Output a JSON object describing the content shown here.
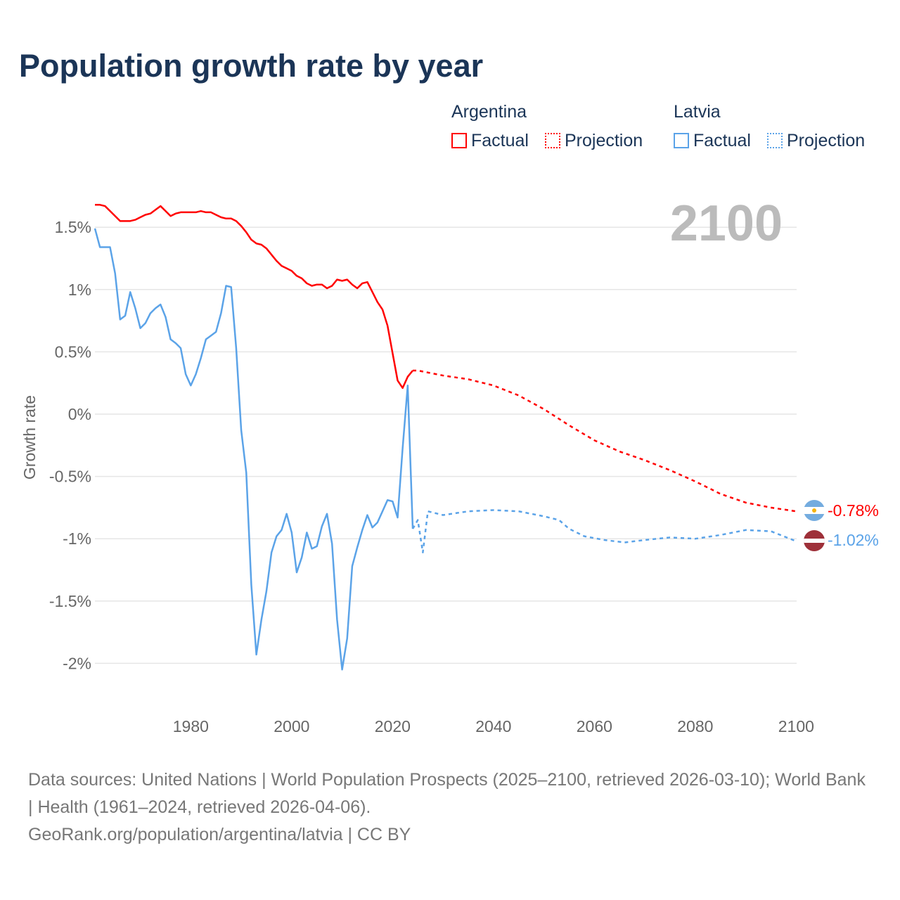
{
  "title": "Population growth rate by year",
  "legend": {
    "groups": [
      {
        "country": "Argentina",
        "color": "#ff0000",
        "factual": "Factual",
        "projection": "Projection"
      },
      {
        "country": "Latvia",
        "color": "#5ba3e8",
        "factual": "Factual",
        "projection": "Projection"
      }
    ]
  },
  "year_label": "2100",
  "end_labels": {
    "argentina": "-0.78%",
    "latvia": "-1.02%"
  },
  "source": {
    "line1": "Data sources: United Nations | World Population Prospects (2025–2100, retrieved 2026-03-10); World Bank | Health (1961–2024, retrieved 2026-04-06).",
    "line2": "GeoRank.org/population/argentina/latvia | CC BY"
  },
  "chart_data": {
    "type": "line",
    "title": "Population growth rate by year",
    "xlabel": "",
    "ylabel": "Growth rate",
    "xlim": [
      1961,
      2100
    ],
    "ylim": [
      -2.3,
      1.85
    ],
    "xticks": [
      1980,
      2000,
      2020,
      2040,
      2060,
      2080,
      2100
    ],
    "yticks": [
      {
        "v": 1.5,
        "l": "1.5%"
      },
      {
        "v": 1,
        "l": "1%"
      },
      {
        "v": 0.5,
        "l": "0.5%"
      },
      {
        "v": 0,
        "l": "0%"
      },
      {
        "v": -0.5,
        "l": "-0.5%"
      },
      {
        "v": -1,
        "l": "-1%"
      },
      {
        "v": -1.5,
        "l": "-1.5%"
      },
      {
        "v": -2,
        "l": "-2%"
      }
    ],
    "series": [
      {
        "name": "Argentina Factual",
        "color": "#ff0000",
        "dashed": false,
        "x0": 1961,
        "values": [
          1.68,
          1.68,
          1.67,
          1.63,
          1.59,
          1.55,
          1.55,
          1.55,
          1.56,
          1.58,
          1.6,
          1.61,
          1.64,
          1.67,
          1.63,
          1.59,
          1.61,
          1.62,
          1.62,
          1.62,
          1.62,
          1.63,
          1.62,
          1.62,
          1.6,
          1.58,
          1.57,
          1.57,
          1.55,
          1.51,
          1.46,
          1.4,
          1.37,
          1.36,
          1.33,
          1.28,
          1.23,
          1.19,
          1.17,
          1.15,
          1.11,
          1.09,
          1.05,
          1.03,
          1.04,
          1.04,
          1.01,
          1.03,
          1.08,
          1.07,
          1.08,
          1.04,
          1.01,
          1.05,
          1.06,
          0.98,
          0.9,
          0.84,
          0.71,
          0.49,
          0.27,
          0.21,
          0.3,
          0.35
        ]
      },
      {
        "name": "Argentina Projection",
        "color": "#ff0000",
        "dashed": true,
        "points": [
          [
            2024,
            0.35
          ],
          [
            2025,
            0.35
          ],
          [
            2030,
            0.31
          ],
          [
            2035,
            0.28
          ],
          [
            2040,
            0.23
          ],
          [
            2045,
            0.15
          ],
          [
            2050,
            0.04
          ],
          [
            2055,
            -0.09
          ],
          [
            2060,
            -0.21
          ],
          [
            2065,
            -0.3
          ],
          [
            2070,
            -0.37
          ],
          [
            2075,
            -0.45
          ],
          [
            2080,
            -0.54
          ],
          [
            2085,
            -0.64
          ],
          [
            2090,
            -0.71
          ],
          [
            2095,
            -0.75
          ],
          [
            2100,
            -0.78
          ]
        ]
      },
      {
        "name": "Latvia Factual",
        "color": "#5ba3e8",
        "dashed": false,
        "x0": 1961,
        "values": [
          1.49,
          1.34,
          1.34,
          1.34,
          1.13,
          0.76,
          0.79,
          0.98,
          0.85,
          0.69,
          0.73,
          0.81,
          0.85,
          0.88,
          0.78,
          0.6,
          0.57,
          0.53,
          0.32,
          0.23,
          0.32,
          0.45,
          0.6,
          0.63,
          0.66,
          0.81,
          1.03,
          1.02,
          0.53,
          -0.13,
          -0.47,
          -1.37,
          -1.93,
          -1.65,
          -1.42,
          -1.11,
          -0.98,
          -0.93,
          -0.8,
          -0.95,
          -1.27,
          -1.15,
          -0.95,
          -1.08,
          -1.06,
          -0.9,
          -0.8,
          -1.04,
          -1.65,
          -2.05,
          -1.8,
          -1.22,
          -1.07,
          -0.93,
          -0.81,
          -0.91,
          -0.87,
          -0.78,
          -0.69,
          -0.7,
          -0.83,
          -0.27,
          0.23,
          -0.92
        ]
      },
      {
        "name": "Latvia Projection",
        "color": "#5ba3e8",
        "dashed": true,
        "points": [
          [
            2024,
            -0.92
          ],
          [
            2025,
            -0.85
          ],
          [
            2026,
            -1.11
          ],
          [
            2027,
            -0.78
          ],
          [
            2030,
            -0.81
          ],
          [
            2035,
            -0.78
          ],
          [
            2040,
            -0.77
          ],
          [
            2045,
            -0.78
          ],
          [
            2050,
            -0.82
          ],
          [
            2053,
            -0.85
          ],
          [
            2055,
            -0.92
          ],
          [
            2058,
            -0.98
          ],
          [
            2062,
            -1.01
          ],
          [
            2066,
            -1.03
          ],
          [
            2070,
            -1.01
          ],
          [
            2075,
            -0.99
          ],
          [
            2080,
            -1.0
          ],
          [
            2085,
            -0.97
          ],
          [
            2090,
            -0.93
          ],
          [
            2095,
            -0.94
          ],
          [
            2100,
            -1.02
          ]
        ]
      }
    ]
  }
}
